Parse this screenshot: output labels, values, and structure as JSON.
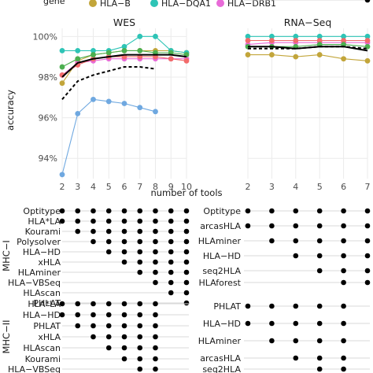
{
  "legend": {
    "title": "gene",
    "items": [
      {
        "label": "HLA−B",
        "color": "#c2a53a"
      },
      {
        "label": "HLA−DQA1",
        "color": "#2ec4b6"
      },
      {
        "label": "HLA−DRB1",
        "color": "#e86bd8"
      }
    ]
  },
  "chart_data": [
    {
      "type": "line",
      "title": "WES",
      "xlabel": "number of tools",
      "ylabel": "accuracy",
      "x": [
        2,
        3,
        4,
        5,
        6,
        7,
        8,
        9,
        10
      ],
      "xlim": [
        2,
        10
      ],
      "ylim": [
        93,
        100.4
      ],
      "yticks": [
        "94%",
        "96%",
        "98%",
        "100%"
      ],
      "series": [
        {
          "color": "#c2a53a",
          "x": [
            2,
            3,
            4,
            5,
            6,
            7,
            8,
            9,
            10
          ],
          "y": [
            97.7,
            98.8,
            99.1,
            99.2,
            99.3,
            99.3,
            99.3,
            99.3,
            99.2
          ]
        },
        {
          "color": "#2ec4b6",
          "x": [
            2,
            3,
            4,
            5,
            6,
            7,
            8,
            9,
            10
          ],
          "y": [
            99.3,
            99.3,
            99.3,
            99.3,
            99.5,
            100.0,
            100.0,
            99.3,
            99.2
          ]
        },
        {
          "color": "#e86bd8",
          "x": [
            2,
            3,
            4,
            5,
            6,
            7,
            8,
            9,
            10
          ],
          "y": [
            98.1,
            98.7,
            98.8,
            98.9,
            98.9,
            98.9,
            98.9,
            98.9,
            98.9
          ]
        },
        {
          "color": "#f26b6b",
          "x": [
            2,
            3,
            4,
            5,
            6,
            7,
            8,
            9,
            10
          ],
          "y": [
            98.1,
            98.6,
            98.9,
            99.0,
            99.0,
            99.0,
            99.0,
            98.9,
            98.8
          ]
        },
        {
          "color": "#4caf50",
          "x": [
            2,
            3,
            4,
            5,
            6,
            7,
            8,
            9,
            10
          ],
          "y": [
            98.5,
            98.9,
            99.1,
            99.2,
            99.3,
            99.3,
            99.2,
            99.2,
            99.1
          ]
        },
        {
          "color": "#6fa8e0",
          "x": [
            2,
            3,
            4,
            5,
            6,
            7,
            8
          ],
          "y": [
            93.2,
            96.2,
            96.9,
            96.8,
            96.7,
            96.5,
            96.3
          ]
        },
        {
          "color": "#000000",
          "style": "solid",
          "x": [
            2,
            3,
            4,
            5,
            6,
            7,
            8,
            9,
            10
          ],
          "y": [
            98.0,
            98.7,
            98.9,
            99.0,
            99.1,
            99.1,
            99.1,
            99.1,
            99.0
          ]
        },
        {
          "color": "#000000",
          "style": "dashed",
          "x": [
            2,
            3,
            4,
            5,
            6,
            7,
            8
          ],
          "y": [
            96.9,
            97.8,
            98.1,
            98.3,
            98.5,
            98.5,
            98.4
          ]
        }
      ]
    },
    {
      "type": "line",
      "title": "RNA−Seq",
      "xlabel": "number of tools",
      "x": [
        2,
        3,
        4,
        5,
        6,
        7
      ],
      "xlim": [
        2,
        7
      ],
      "ylim": [
        93,
        100.4
      ],
      "series": [
        {
          "color": "#c2a53a",
          "x": [
            2,
            3,
            4,
            5,
            6,
            7
          ],
          "y": [
            99.1,
            99.1,
            99.0,
            99.1,
            98.9,
            98.8
          ]
        },
        {
          "color": "#2ec4b6",
          "x": [
            2,
            3,
            4,
            5,
            6,
            7
          ],
          "y": [
            100.0,
            100.0,
            100.0,
            100.0,
            100.0,
            100.0
          ]
        },
        {
          "color": "#e86bd8",
          "x": [
            2,
            3,
            4,
            5,
            6,
            7
          ],
          "y": [
            99.6,
            99.7,
            99.7,
            99.7,
            99.7,
            99.7
          ]
        },
        {
          "color": "#f26b6b",
          "x": [
            2,
            3,
            4,
            5,
            6,
            7
          ],
          "y": [
            99.8,
            99.8,
            99.8,
            99.8,
            99.8,
            99.8
          ]
        },
        {
          "color": "#4caf50",
          "x": [
            2,
            3,
            4,
            5,
            6,
            7
          ],
          "y": [
            99.5,
            99.5,
            99.5,
            99.6,
            99.6,
            99.5
          ]
        },
        {
          "color": "#000000",
          "style": "solid",
          "x": [
            2,
            3,
            4,
            5,
            6,
            7
          ],
          "y": [
            99.5,
            99.5,
            99.4,
            99.5,
            99.5,
            99.3
          ]
        },
        {
          "color": "#000000",
          "style": "dashed",
          "x": [
            2,
            3,
            4,
            5,
            6,
            7
          ],
          "y": [
            99.4,
            99.4,
            99.4,
            99.5,
            99.5,
            99.4
          ]
        }
      ]
    },
    {
      "type": "table",
      "title": "MHC−I",
      "dataset": "WES",
      "columns": [
        2,
        3,
        4,
        5,
        6,
        7,
        8,
        9,
        10
      ],
      "rows": [
        {
          "label": "Optitype",
          "from": 2
        },
        {
          "label": "HLA*LA",
          "from": 2
        },
        {
          "label": "Kourami",
          "from": 3
        },
        {
          "label": "Polysolver",
          "from": 4
        },
        {
          "label": "HLA−HD",
          "from": 5
        },
        {
          "label": "xHLA",
          "from": 6
        },
        {
          "label": "HLAminer",
          "from": 7
        },
        {
          "label": "HLA−VBSeq",
          "from": 8
        },
        {
          "label": "HLAscan",
          "from": 9
        },
        {
          "label": "PHLAT",
          "from": 10
        }
      ]
    },
    {
      "type": "table",
      "title": "MHC−I",
      "dataset": "RNA−Seq",
      "columns": [
        2,
        3,
        4,
        5,
        6,
        7
      ],
      "rows": [
        {
          "label": "Optitype",
          "from": 2
        },
        {
          "label": "arcasHLA",
          "from": 2
        },
        {
          "label": "HLAminer",
          "from": 3
        },
        {
          "label": "HLA−HD",
          "from": 4
        },
        {
          "label": "seq2HLA",
          "from": 5
        },
        {
          "label": "HLAforest",
          "from": 6
        },
        {
          "label": "PHLAT",
          "from": 7
        }
      ]
    },
    {
      "type": "table",
      "title": "MHC−II",
      "dataset": "WES",
      "columns": [
        2,
        3,
        4,
        5,
        6,
        7,
        8
      ],
      "rows": [
        {
          "label": "HLA*LA",
          "from": 2
        },
        {
          "label": "HLA−HD",
          "from": 2
        },
        {
          "label": "PHLAT",
          "from": 3
        },
        {
          "label": "xHLA",
          "from": 4
        },
        {
          "label": "HLAscan",
          "from": 5
        },
        {
          "label": "Kourami",
          "from": 6
        },
        {
          "label": "HLA−VBSeq",
          "from": 7
        }
      ]
    },
    {
      "type": "table",
      "title": "MHC−II",
      "dataset": "RNA−Seq",
      "columns": [
        2,
        3,
        4,
        5,
        6
      ],
      "rows": [
        {
          "label": "PHLAT",
          "from": 2
        },
        {
          "label": "HLA−HD",
          "from": 2
        },
        {
          "label": "HLAminer",
          "from": 3
        },
        {
          "label": "arcasHLA",
          "from": 4
        },
        {
          "label": "seq2HLA",
          "from": 5
        }
      ]
    }
  ]
}
